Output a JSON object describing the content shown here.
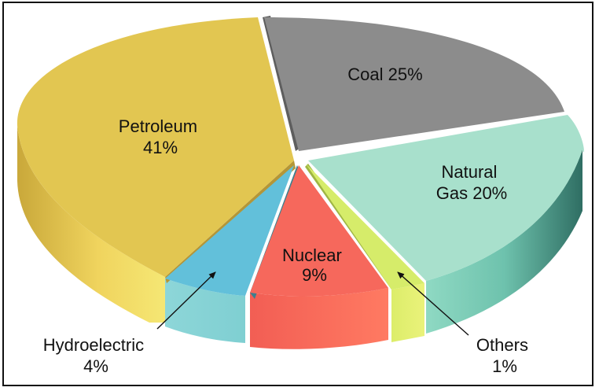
{
  "chart_data": {
    "type": "pie",
    "style": "3d-exploded",
    "title": "",
    "slices": [
      {
        "name": "Coal",
        "value": 25,
        "color": "#8e8e8e",
        "label_lines": [
          "Coal 25%"
        ]
      },
      {
        "name": "Natural Gas",
        "value": 20,
        "color": "#a8e0cc",
        "label_lines": [
          "Natural",
          "Gas 20%"
        ]
      },
      {
        "name": "Others",
        "value": 1,
        "color": "#d6ec6a",
        "label_lines": [
          "Others",
          "1%"
        ]
      },
      {
        "name": "Nuclear",
        "value": 9,
        "color": "#f6685c",
        "label_lines": [
          "Nuclear",
          "9%"
        ]
      },
      {
        "name": "Hydroelectric",
        "value": 4,
        "color": "#62c0da",
        "label_lines": [
          "Hydroelectric",
          "4%"
        ]
      },
      {
        "name": "Petroleum",
        "value": 41,
        "color": "#e2c651",
        "label_lines": [
          "Petroleum",
          "41%"
        ]
      }
    ]
  }
}
